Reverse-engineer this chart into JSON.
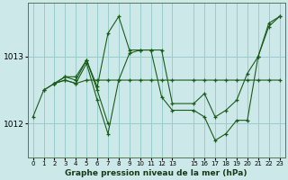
{
  "bg_color": "#cce8e8",
  "grid_color": "#99cccc",
  "line_color": "#1a5c1a",
  "marker_color": "#1a5c1a",
  "title": "Graphe pression niveau de la mer (hPa)",
  "xlim": [
    -0.5,
    23.5
  ],
  "ylim": [
    1011.5,
    1013.8
  ],
  "yticks": [
    1012,
    1013
  ],
  "xticks": [
    0,
    1,
    2,
    3,
    4,
    5,
    6,
    7,
    8,
    9,
    10,
    11,
    12,
    13,
    15,
    16,
    17,
    18,
    19,
    20,
    21,
    22,
    23
  ],
  "series": [
    {
      "x": [
        0,
        1,
        2,
        3,
        4,
        5,
        6,
        7,
        8,
        9,
        10,
        11,
        12,
        13,
        15,
        16,
        17,
        18,
        19,
        20,
        21,
        22,
        23
      ],
      "y": [
        1012.1,
        1012.5,
        1012.6,
        1012.65,
        1012.6,
        1012.65,
        1012.65,
        1012.65,
        1012.65,
        1012.65,
        1012.65,
        1012.65,
        1012.65,
        1012.65,
        1012.65,
        1012.65,
        1012.65,
        1012.65,
        1012.65,
        1012.65,
        1012.65,
        1012.65,
        1012.65
      ]
    },
    {
      "x": [
        2,
        3,
        4,
        5,
        6,
        7,
        8,
        9,
        10,
        11,
        12,
        13,
        15,
        16,
        17,
        18,
        19,
        20,
        21,
        22,
        23
      ],
      "y": [
        1012.6,
        1012.7,
        1012.7,
        1012.95,
        1012.55,
        1013.35,
        1013.6,
        1013.1,
        1013.1,
        1013.1,
        1013.1,
        1012.3,
        1012.3,
        1012.45,
        1012.1,
        1012.2,
        1012.35,
        1012.75,
        1013.0,
        1013.45,
        1013.6
      ]
    },
    {
      "x": [
        2,
        3,
        4,
        5,
        6,
        7,
        8,
        9,
        10,
        11,
        12,
        13,
        15,
        16,
        17,
        18,
        19,
        20,
        21,
        22,
        23
      ],
      "y": [
        1012.6,
        1012.65,
        1012.6,
        1012.9,
        1012.35,
        1011.85,
        1012.65,
        1013.05,
        1013.1,
        1013.1,
        1012.4,
        1012.2,
        1012.2,
        1012.1,
        1011.75,
        1011.85,
        1012.05,
        1012.05,
        1013.0,
        1013.5,
        1013.6
      ]
    },
    {
      "x": [
        1,
        2,
        3,
        4,
        5,
        6,
        7
      ],
      "y": [
        1012.5,
        1012.6,
        1012.7,
        1012.65,
        1012.95,
        1012.5,
        1012.0
      ]
    }
  ]
}
